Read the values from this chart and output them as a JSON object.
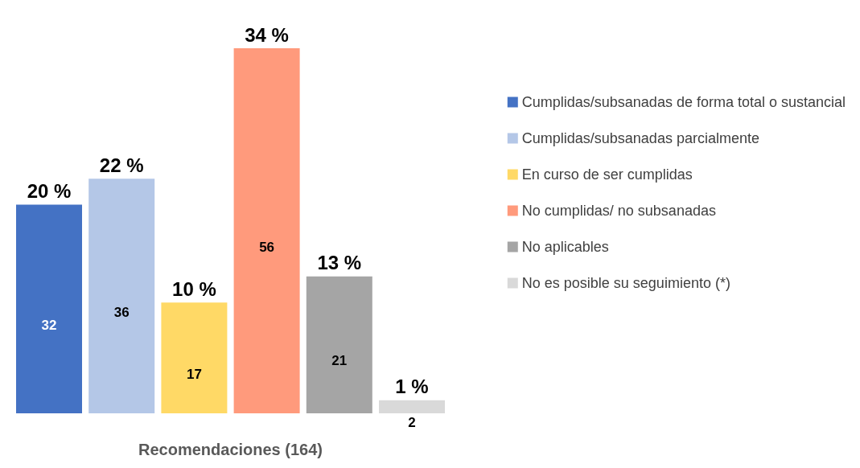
{
  "chart_data": {
    "type": "bar",
    "xlabel": "Recomendaciones (164)",
    "categories": [
      null
    ],
    "data_labels": true,
    "legend": "right",
    "annotations": [
      "20 %",
      "22 %",
      "10 %",
      "34 %",
      "13 %",
      "1 %"
    ],
    "series": [
      {
        "name": "Cumplidas/subsanadas de forma total o sustancial",
        "color": "#4472c4",
        "values": [
          32
        ]
      },
      {
        "name": "Cumplidas/subsanadas parcialmente",
        "color": "#b4c7e7",
        "values": [
          36
        ]
      },
      {
        "name": "En curso de ser cumplidas",
        "color": "#ffd966",
        "values": [
          17
        ]
      },
      {
        "name": "No cumplidas/ no subsanadas",
        "color": "#ff9a7c",
        "values": [
          56
        ]
      },
      {
        "name": "No aplicables",
        "color": "#a5a5a5",
        "values": [
          21
        ]
      },
      {
        "name": "No es posible su seguimiento (*)",
        "color": "#d9d9d9",
        "values": [
          2
        ]
      }
    ]
  }
}
